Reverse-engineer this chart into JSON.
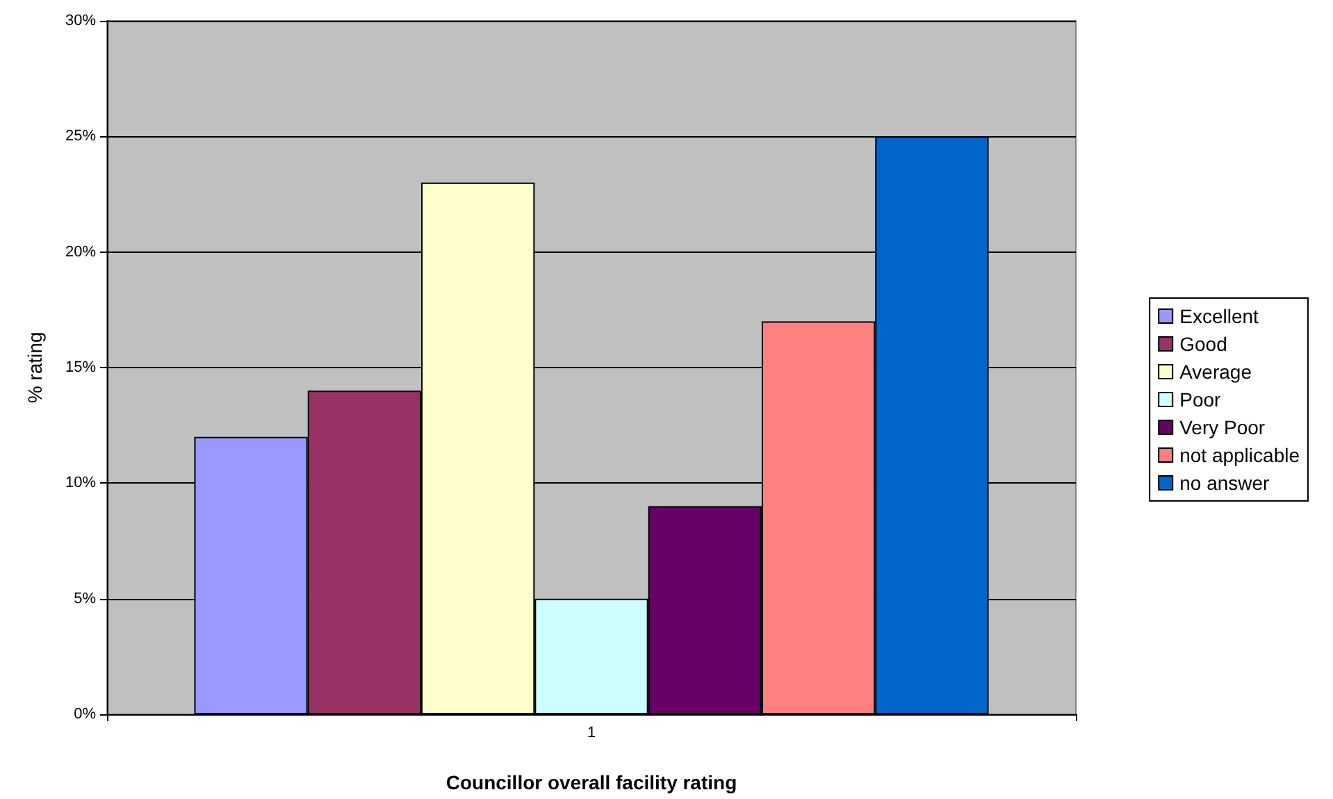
{
  "chart_data": {
    "type": "bar",
    "xlabel": "Councillor overall facility rating",
    "ylabel": "% rating",
    "categories": [
      "1"
    ],
    "series": [
      {
        "name": "Excellent",
        "color": "#9999ff",
        "values": [
          12
        ]
      },
      {
        "name": "Good",
        "color": "#993366",
        "values": [
          14
        ]
      },
      {
        "name": "Average",
        "color": "#ffffcc",
        "values": [
          23
        ]
      },
      {
        "name": "Poor",
        "color": "#ccffff",
        "values": [
          5
        ]
      },
      {
        "name": "Very Poor",
        "color": "#660066",
        "values": [
          9
        ]
      },
      {
        "name": "not applicable",
        "color": "#ff8080",
        "values": [
          17
        ]
      },
      {
        "name": "no answer",
        "color": "#0066cc",
        "values": [
          25
        ]
      }
    ],
    "ylim": [
      0,
      30
    ],
    "yticks": [
      {
        "value": 0,
        "label": "0%"
      },
      {
        "value": 5,
        "label": "5%"
      },
      {
        "value": 10,
        "label": "10%"
      },
      {
        "value": 15,
        "label": "15%"
      },
      {
        "value": 20,
        "label": "20%"
      },
      {
        "value": 25,
        "label": "25%"
      },
      {
        "value": 30,
        "label": "30%"
      }
    ],
    "grid": "y",
    "legend": "right"
  }
}
